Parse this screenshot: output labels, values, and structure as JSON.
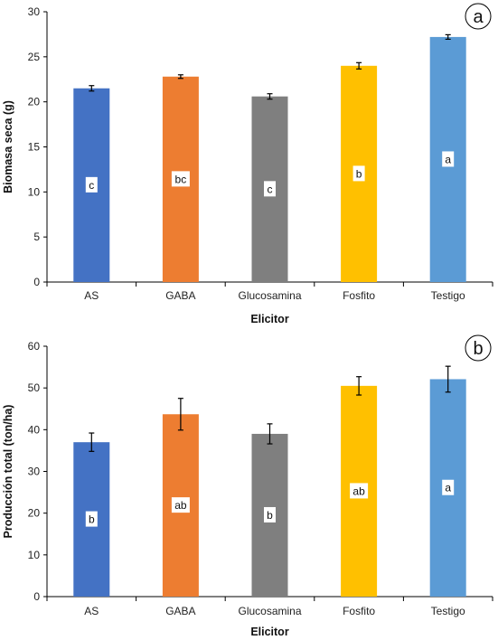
{
  "colors": {
    "AS": "#4472c4",
    "GABA": "#ed7d31",
    "Glucosamina": "#7f7f7f",
    "Fosfito": "#ffc000",
    "Testigo": "#5b9bd5",
    "axis": "#000000"
  },
  "chart_data": [
    {
      "type": "bar",
      "panel": "a",
      "xlabel": "Elicitor",
      "ylabel": "Biomasa seca (g)",
      "categories": [
        "AS",
        "GABA",
        "Glucosamina",
        "Fosfito",
        "Testigo"
      ],
      "values": [
        21.5,
        22.8,
        20.6,
        24.0,
        27.2
      ],
      "errors": [
        0.3,
        0.2,
        0.3,
        0.35,
        0.25
      ],
      "letters": [
        "c",
        "bc",
        "c",
        "b",
        "a"
      ],
      "ylim": [
        0,
        30
      ],
      "yticks": [
        0,
        5,
        10,
        15,
        20,
        25,
        30
      ],
      "grid": false,
      "legend": "none"
    },
    {
      "type": "bar",
      "panel": "b",
      "xlabel": "Elicitor",
      "ylabel": "Producción total (ton/ha)",
      "categories": [
        "AS",
        "GABA",
        "Glucosamina",
        "Fosfito",
        "Testigo"
      ],
      "values": [
        37.0,
        43.7,
        39.0,
        50.5,
        52.1
      ],
      "errors": [
        2.2,
        3.8,
        2.4,
        2.2,
        3.1
      ],
      "letters": [
        "b",
        "ab",
        "b",
        "ab",
        "a"
      ],
      "ylim": [
        0,
        60
      ],
      "yticks": [
        0,
        10,
        20,
        30,
        40,
        50,
        60
      ],
      "grid": false,
      "legend": "none"
    }
  ]
}
